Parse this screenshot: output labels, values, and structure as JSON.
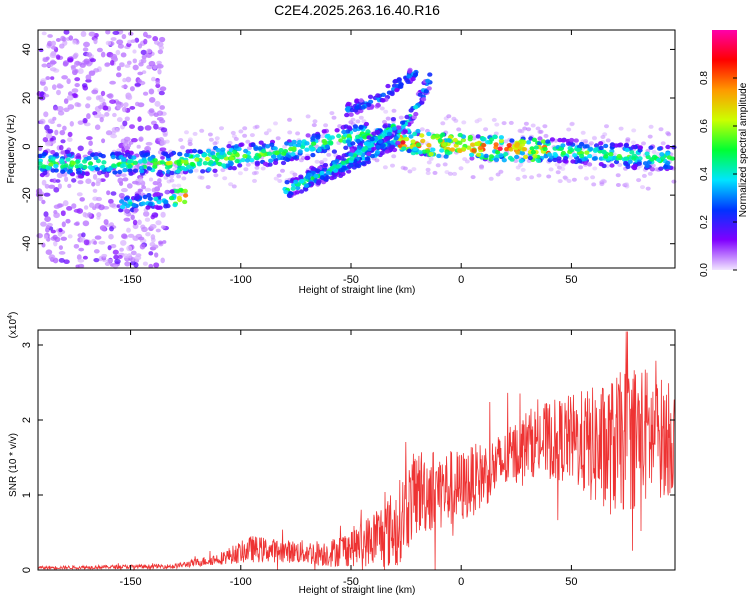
{
  "title": "C2E4.2025.263.16.40.R16",
  "chart_data": [
    {
      "type": "heatmap",
      "xlabel": "Height of straight line (km)",
      "ylabel": "Frequency (Hz)",
      "xlim": [
        -192,
        97
      ],
      "ylim": [
        -50,
        48
      ],
      "xticks": [
        -150,
        -100,
        -50,
        0,
        50
      ],
      "yticks": [
        -40,
        -20,
        0,
        20,
        40
      ],
      "colorbar": {
        "label": "Normalized spectral amplitude",
        "range": [
          0,
          1
        ],
        "ticks": [
          "0.0",
          "0.2",
          "0.4",
          "0.6",
          "0.8"
        ],
        "colors": [
          "#f2e6ff",
          "#8000ff",
          "#0033ff",
          "#00e5ff",
          "#00ff33",
          "#ccff00",
          "#ff9900",
          "#ff0000",
          "#ff00aa"
        ]
      },
      "ridges": [
        {
          "name": "main-band",
          "points": [
            [
              -192,
              -7
            ],
            [
              -140,
              -7
            ],
            [
              -130,
              -7
            ],
            [
              -100,
              -4
            ],
            [
              -80,
              -2
            ],
            [
              -60,
              2
            ],
            [
              -45,
              5
            ],
            [
              -25,
              2
            ],
            [
              0,
              0
            ],
            [
              25,
              -1
            ],
            [
              50,
              -2
            ],
            [
              75,
              -4
            ],
            [
              97,
              -5
            ]
          ]
        },
        {
          "name": "lower-branch",
          "points": [
            [
              -155,
              -24
            ],
            [
              -135,
              -22
            ],
            [
              -125,
              -20
            ]
          ]
        },
        {
          "name": "upper-line",
          "points": [
            [
              -52,
              15
            ],
            [
              -38,
              19
            ],
            [
              -28,
              26
            ],
            [
              -20,
              31
            ]
          ]
        },
        {
          "name": "rising-curve",
          "points": [
            [
              -68,
              -12
            ],
            [
              -55,
              -9
            ],
            [
              -40,
              -3
            ],
            [
              -30,
              3
            ],
            [
              -22,
              14
            ],
            [
              -14,
              28
            ]
          ]
        },
        {
          "name": "mid-line",
          "points": [
            [
              -80,
              -18
            ],
            [
              -62,
              -11
            ],
            [
              -50,
              -5
            ],
            [
              -38,
              3
            ],
            [
              -30,
              9
            ]
          ]
        }
      ]
    },
    {
      "type": "line",
      "xlabel": "Height of straight line (km)",
      "ylabel": "SNR (10 * v/v)",
      "yunit": "(x10",
      "yunit_exp": "4",
      "yunit_close": ")",
      "xlim": [
        -192,
        97
      ],
      "ylim": [
        0,
        3.2
      ],
      "xticks": [
        -150,
        -100,
        -50,
        0,
        50
      ],
      "yticks": [
        0,
        1,
        2,
        3
      ],
      "color": "#ee3333",
      "envelope": [
        {
          "x": -192,
          "base": 0.03,
          "amp": 0.02
        },
        {
          "x": -130,
          "base": 0.05,
          "amp": 0.03
        },
        {
          "x": -110,
          "base": 0.15,
          "amp": 0.08
        },
        {
          "x": -95,
          "base": 0.28,
          "amp": 0.18
        },
        {
          "x": -80,
          "base": 0.25,
          "amp": 0.15
        },
        {
          "x": -60,
          "base": 0.22,
          "amp": 0.18
        },
        {
          "x": -45,
          "base": 0.35,
          "amp": 0.3
        },
        {
          "x": -30,
          "base": 0.55,
          "amp": 0.55
        },
        {
          "x": -20,
          "base": 1.05,
          "amp": 0.6
        },
        {
          "x": 0,
          "base": 1.1,
          "amp": 0.5
        },
        {
          "x": 20,
          "base": 1.45,
          "amp": 0.4
        },
        {
          "x": 30,
          "base": 1.7,
          "amp": 0.45
        },
        {
          "x": 50,
          "base": 1.75,
          "amp": 0.6
        },
        {
          "x": 65,
          "base": 1.6,
          "amp": 0.9
        },
        {
          "x": 80,
          "base": 1.8,
          "amp": 1.0
        },
        {
          "x": 97,
          "base": 1.75,
          "amp": 0.7
        }
      ]
    }
  ]
}
